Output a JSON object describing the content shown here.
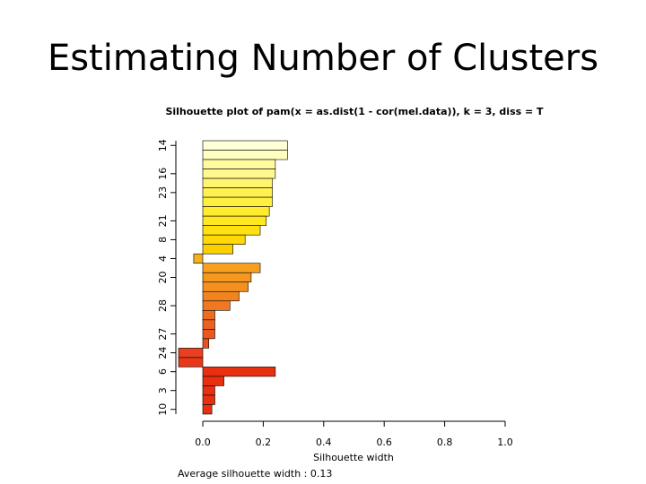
{
  "slide_title": "Estimating Number of Clusters",
  "chart_data": {
    "type": "silhouette",
    "title": "Silhouette plot of  pam(x = as.dist(1 - cor(mel.data)), k = 3, diss = T",
    "x_label": "Silhouette width",
    "footer": "Average silhouette width : 0.13",
    "categories": [
      "14",
      null,
      null,
      "16",
      null,
      "23",
      null,
      null,
      "21",
      null,
      "8",
      null,
      "4",
      null,
      "20",
      null,
      null,
      "28",
      null,
      null,
      "27",
      null,
      "24",
      null,
      "6",
      null,
      "3",
      null,
      "10"
    ],
    "values": [
      0.28,
      0.28,
      0.24,
      0.24,
      0.23,
      0.23,
      0.23,
      0.22,
      0.21,
      0.19,
      0.14,
      0.1,
      -0.03,
      0.19,
      0.16,
      0.15,
      0.12,
      0.09,
      0.04,
      0.04,
      0.04,
      0.02,
      -0.08,
      -0.08,
      0.24,
      0.07,
      0.04,
      0.04,
      0.03
    ],
    "colors": [
      "#ffffd8",
      "#ffffc0",
      "#fffaa0",
      "#fff890",
      "#fff570",
      "#fff250",
      "#fff040",
      "#ffec30",
      "#ffe820",
      "#ffe010",
      "#ffd808",
      "#fcd000",
      "#f5b020",
      "#f7a020",
      "#f59820",
      "#f49020",
      "#f28420",
      "#f07820",
      "#ee6c20",
      "#ec6020",
      "#ea5820",
      "#e85020",
      "#e84020",
      "#e83818",
      "#e83010",
      "#e83010",
      "#e83010",
      "#e83010",
      "#e83010"
    ],
    "xlim": [
      0,
      1
    ],
    "xticks": [
      {
        "value": 0,
        "label": "0.0"
      },
      {
        "value": 0.2,
        "label": "0.2"
      },
      {
        "value": 0.4,
        "label": "0.4"
      },
      {
        "value": 0.6,
        "label": "0.6"
      },
      {
        "value": 0.8,
        "label": "0.8"
      },
      {
        "value": 1,
        "label": "1.0"
      }
    ]
  }
}
